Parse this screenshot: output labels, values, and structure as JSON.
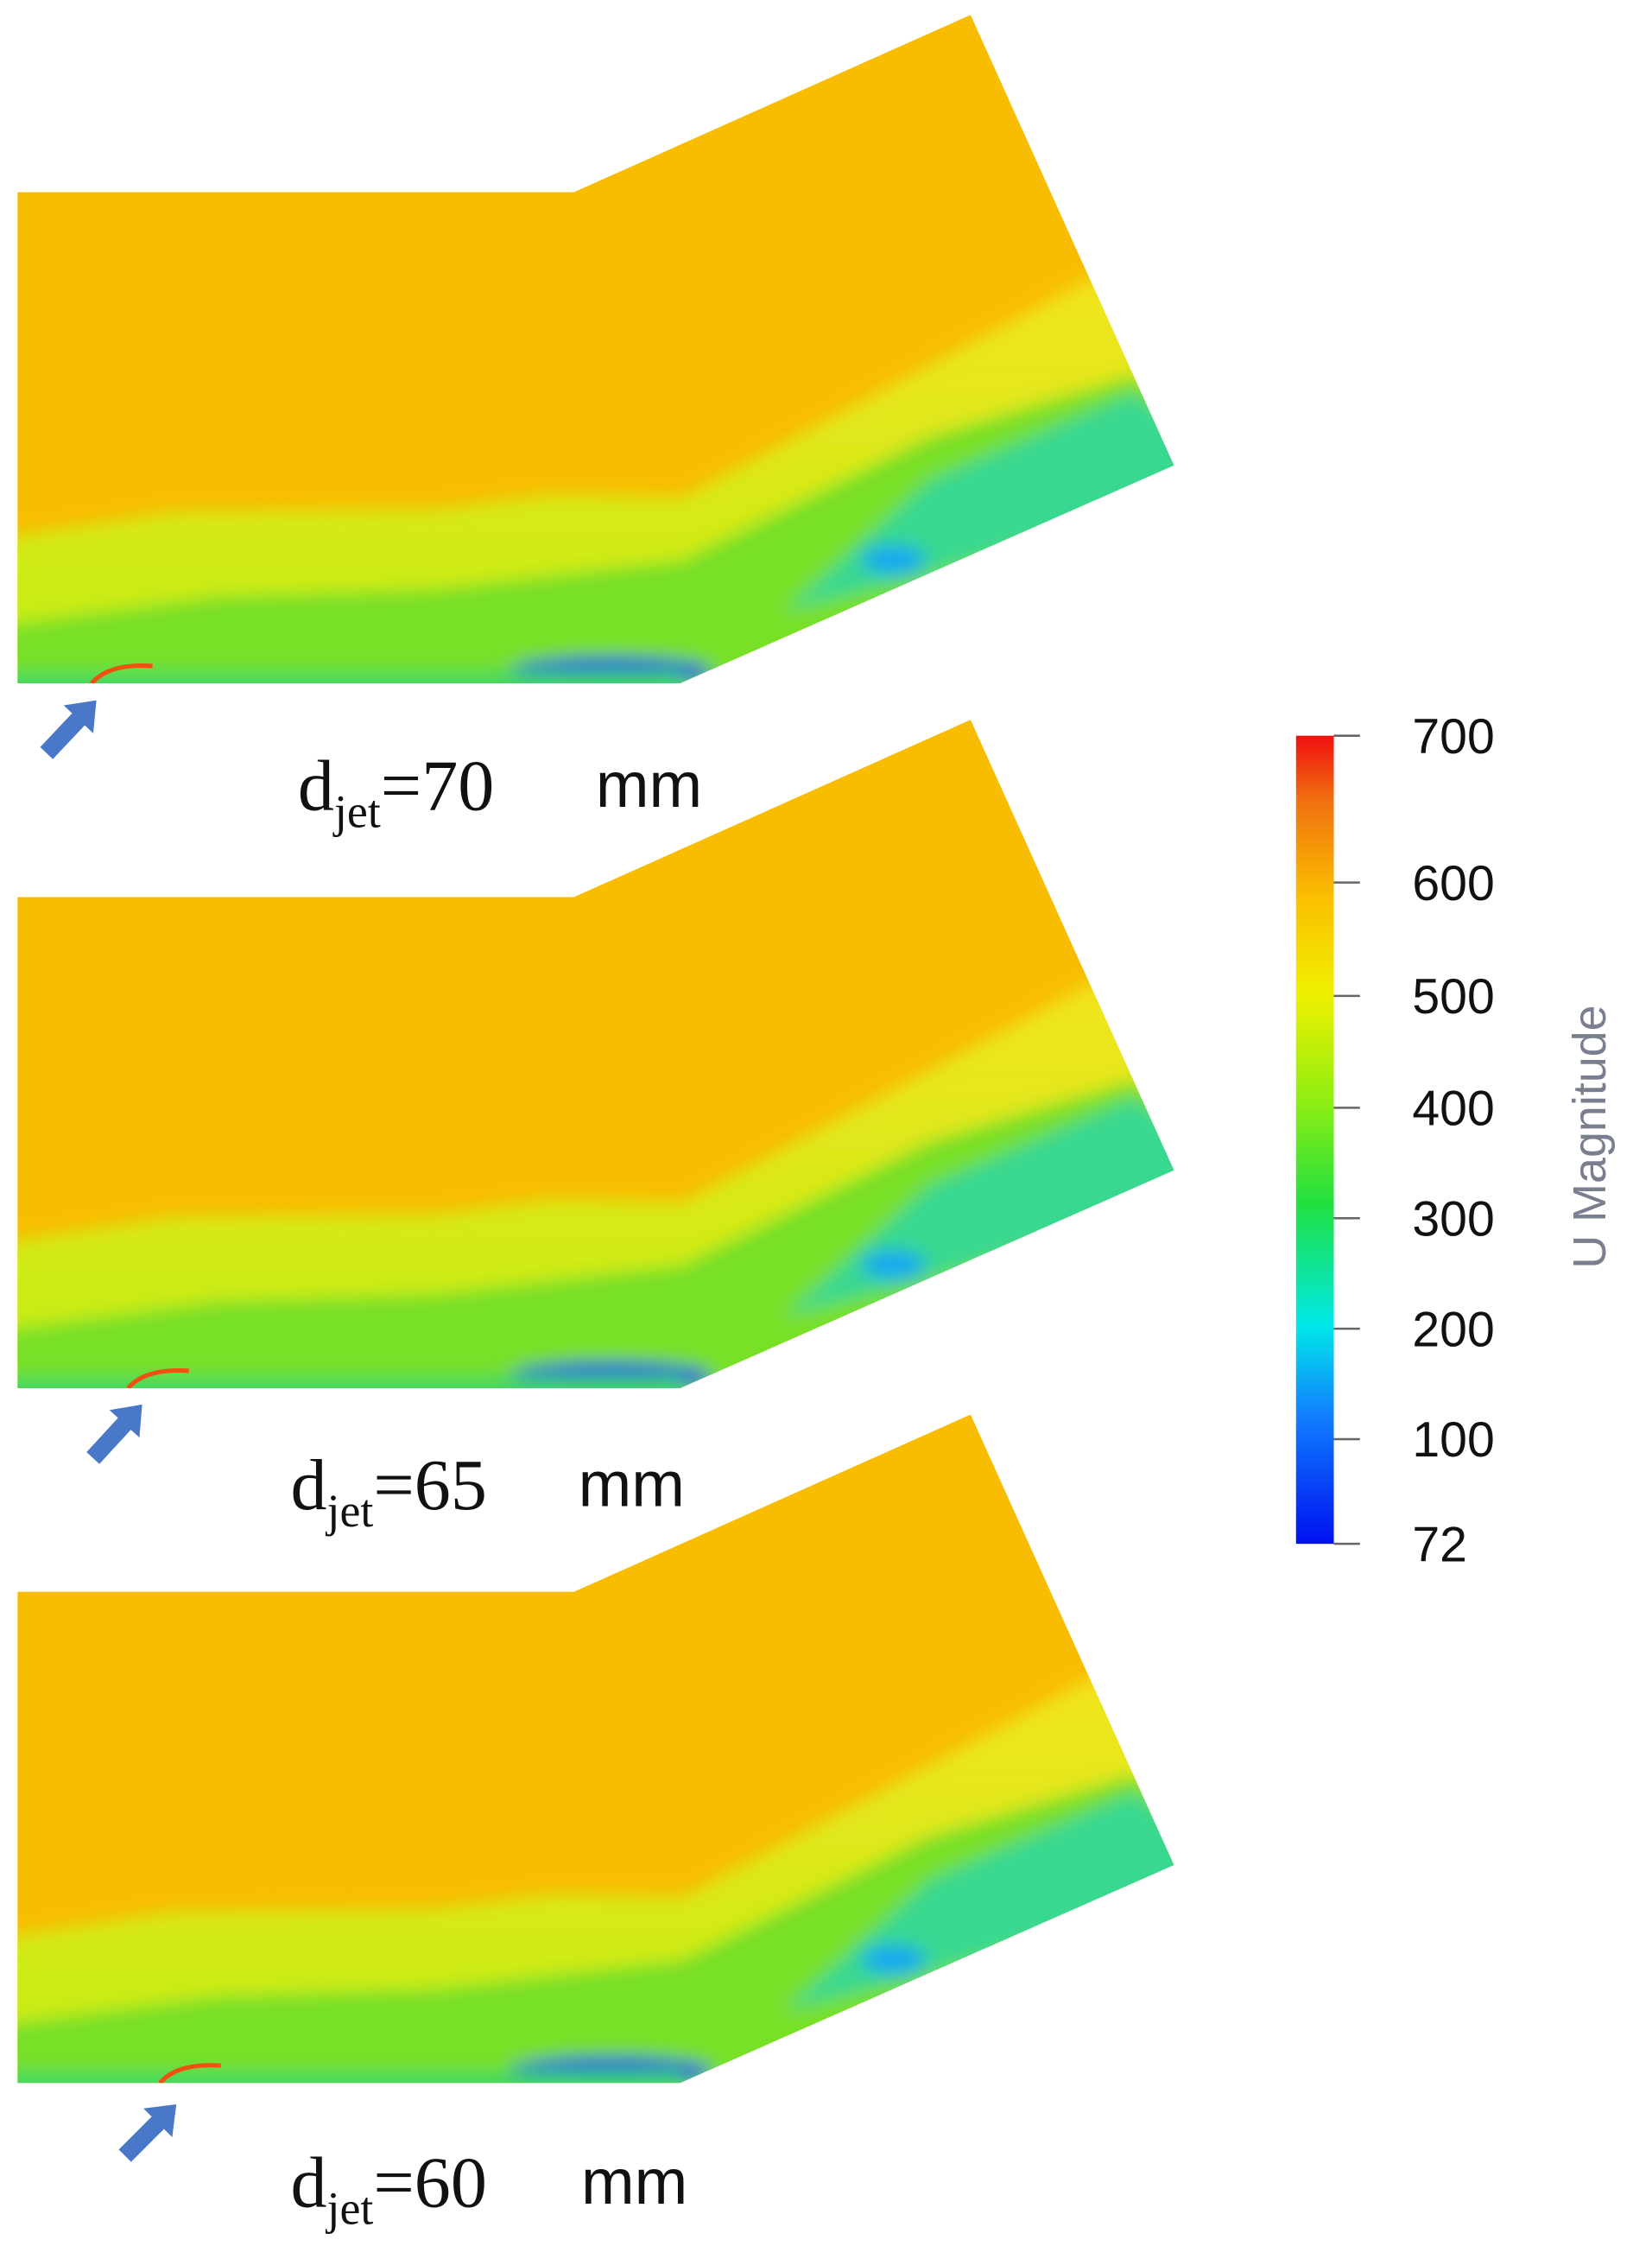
{
  "panels": [
    {
      "label": {
        "d": "d",
        "sub": "jet",
        "eq": "=70",
        "unit": "mm"
      }
    },
    {
      "label": {
        "d": "d",
        "sub": "jet",
        "eq": "=65",
        "unit": "mm"
      }
    },
    {
      "label": {
        "d": "d",
        "sub": "jet",
        "eq": "=60",
        "unit": "mm"
      }
    }
  ],
  "colorbar": {
    "title": "U Magnitude",
    "ticks": [
      700,
      600,
      500,
      400,
      300,
      200,
      100,
      72
    ]
  }
}
